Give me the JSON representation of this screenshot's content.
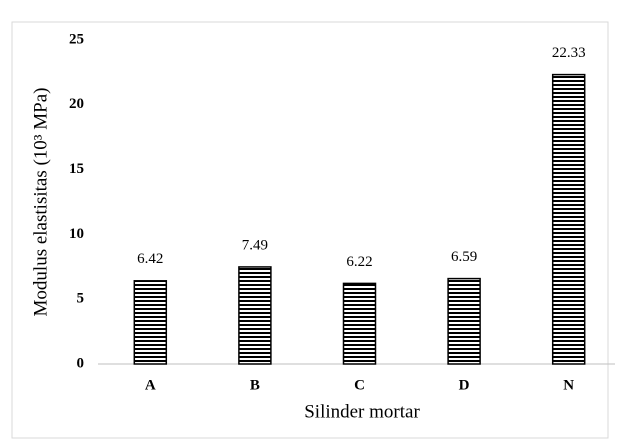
{
  "chart_data": {
    "type": "bar",
    "x_label": "Silinder mortar",
    "y_label": "Modulus elastisitas (10³ MPa)",
    "categories": [
      "A",
      "B",
      "C",
      "D",
      "N"
    ],
    "values": [
      6.42,
      7.49,
      6.22,
      6.59,
      22.33
    ],
    "color": "#000000",
    "ylim": [
      0,
      25
    ],
    "yticks": [
      0,
      5,
      10,
      15,
      20,
      25
    ],
    "grid": false
  }
}
